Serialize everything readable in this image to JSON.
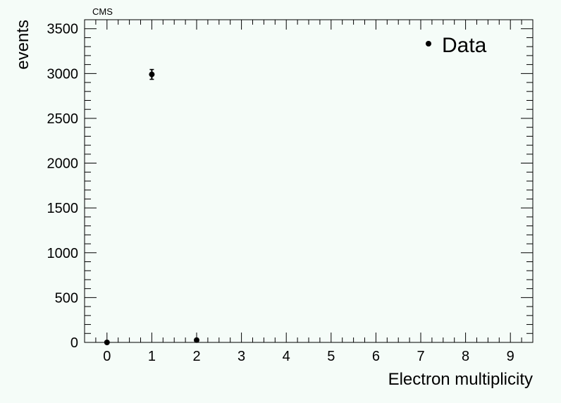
{
  "chart_data": {
    "type": "scatter",
    "label": "CMS",
    "xlabel": "Electron multiplicity",
    "ylabel": "events",
    "xlim": [
      -0.5,
      9.5
    ],
    "ylim": [
      0,
      3600
    ],
    "xticks": [
      "0",
      "1",
      "2",
      "3",
      "4",
      "5",
      "6",
      "7",
      "8",
      "9"
    ],
    "yticks": [
      "0",
      "500",
      "1000",
      "1500",
      "2000",
      "2500",
      "3000",
      "3500"
    ],
    "legend": {
      "position": "top-right",
      "label": "Data"
    },
    "grid": false,
    "series": [
      {
        "name": "Data",
        "x": [
          0,
          1,
          2
        ],
        "y": [
          0,
          2990,
          26
        ],
        "yerr": [
          0,
          55,
          5
        ]
      }
    ]
  }
}
